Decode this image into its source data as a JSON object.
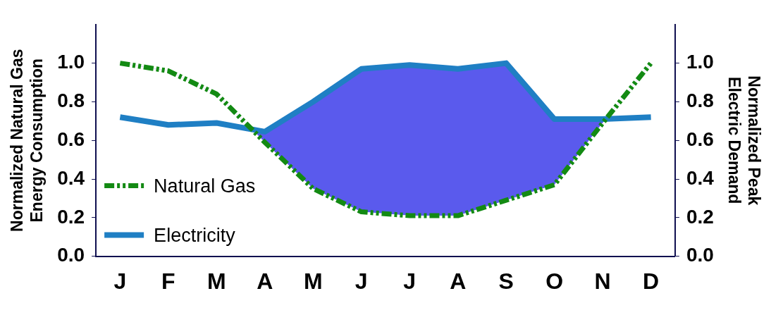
{
  "chart_data": {
    "type": "line",
    "ylabel": "Normalized Natural Gas\nEnergy Consumption",
    "y2label": "Normalized Peak\nElectric Demand",
    "categories": [
      "J",
      "F",
      "M",
      "A",
      "M",
      "J",
      "J",
      "A",
      "S",
      "O",
      "N",
      "D"
    ],
    "series": [
      {
        "name": "Natural Gas",
        "color": "#138a13",
        "line_style": "dashed",
        "values": [
          1.0,
          0.96,
          0.84,
          0.59,
          0.35,
          0.23,
          0.21,
          0.21,
          0.29,
          0.37,
          0.69,
          1.0
        ]
      },
      {
        "name": "Electricity",
        "color": "#1f7fc4",
        "line_style": "solid",
        "values": [
          0.72,
          0.68,
          0.69,
          0.645,
          0.8,
          0.97,
          0.99,
          0.97,
          1.0,
          0.71,
          0.71,
          0.72
        ]
      }
    ],
    "ylim": [
      0,
      1.2
    ],
    "yticks": [
      {
        "value": 0,
        "label": "0.0"
      },
      {
        "value": 0.2,
        "label": "0.2"
      },
      {
        "value": 0.4,
        "label": "0.4"
      },
      {
        "value": 0.6,
        "label": "0.6"
      },
      {
        "value": 0.8,
        "label": "0.8"
      },
      {
        "value": 1,
        "label": "1.0"
      }
    ],
    "y2lim": [
      0,
      1.2
    ],
    "y2ticks": [
      {
        "value": 0,
        "label": "0.0"
      },
      {
        "value": 0.2,
        "label": "0.2"
      },
      {
        "value": 0.4,
        "label": "0.4"
      },
      {
        "value": 0.6,
        "label": "0.6"
      },
      {
        "value": 0.8,
        "label": "0.8"
      },
      {
        "value": 1,
        "label": "1.0"
      }
    ],
    "grid": false,
    "legend": "bottom left",
    "marker": "none"
  }
}
